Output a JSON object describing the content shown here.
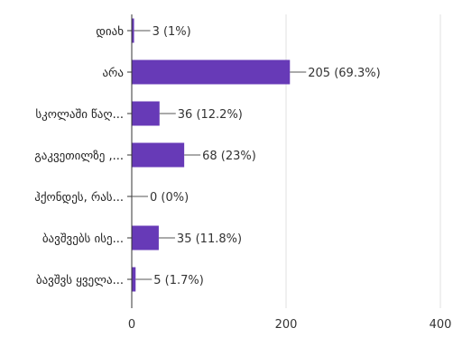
{
  "chart_data": {
    "type": "bar",
    "orientation": "horizontal",
    "categories": [
      "დიახ",
      "არა",
      "სკოლაში წაღ...",
      "გაკვეთილზე ,...",
      "ჰქონდეს, რას...",
      "ბავშვებს ისე...",
      "ბავშვს ყველა..."
    ],
    "values": [
      3,
      205,
      36,
      68,
      0,
      35,
      5
    ],
    "data_labels": [
      "3 (1%)",
      "205 (69.3%)",
      "36 (12.2%)",
      "68 (23%)",
      "0 (0%)",
      "35 (11.8%)",
      "5 (1.7%)"
    ],
    "xlim": [
      0,
      400
    ],
    "xticks": [
      "0",
      "200",
      "400"
    ],
    "grid": true,
    "bar_color": "#673ab7",
    "grid_color": "#e0e0e0",
    "axis_color": "#333333"
  }
}
